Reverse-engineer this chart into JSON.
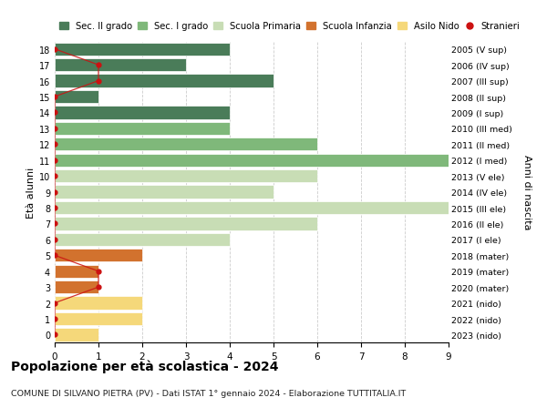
{
  "ages": [
    18,
    17,
    16,
    15,
    14,
    13,
    12,
    11,
    10,
    9,
    8,
    7,
    6,
    5,
    4,
    3,
    2,
    1,
    0
  ],
  "years": [
    "2005 (V sup)",
    "2006 (IV sup)",
    "2007 (III sup)",
    "2008 (II sup)",
    "2009 (I sup)",
    "2010 (III med)",
    "2011 (II med)",
    "2012 (I med)",
    "2013 (V ele)",
    "2014 (IV ele)",
    "2015 (III ele)",
    "2016 (II ele)",
    "2017 (I ele)",
    "2018 (mater)",
    "2019 (mater)",
    "2020 (mater)",
    "2021 (nido)",
    "2022 (nido)",
    "2023 (nido)"
  ],
  "bar_values": [
    4,
    3,
    5,
    1,
    4,
    4,
    6,
    9,
    6,
    5,
    9,
    6,
    4,
    2,
    1,
    1,
    2,
    2,
    1
  ],
  "bar_colors": [
    "#4a7c59",
    "#4a7c59",
    "#4a7c59",
    "#4a7c59",
    "#4a7c59",
    "#7fb87a",
    "#7fb87a",
    "#7fb87a",
    "#c8ddb5",
    "#c8ddb5",
    "#c8ddb5",
    "#c8ddb5",
    "#c8ddb5",
    "#d2722e",
    "#d2722e",
    "#d2722e",
    "#f5d87a",
    "#f5d87a",
    "#f5d87a"
  ],
  "stranieri_data": {
    "18": 0,
    "17": 1,
    "16": 1,
    "15": 0,
    "14": 0,
    "13": 0,
    "12": 0,
    "11": 0,
    "10": 0,
    "9": 0,
    "8": 0,
    "7": 0,
    "6": 0,
    "5": 0,
    "4": 1,
    "3": 1,
    "2": 0,
    "1": 0,
    "0": 0
  },
  "color_sec2": "#4a7c59",
  "color_sec1": "#7fb87a",
  "color_primaria": "#c8ddb5",
  "color_infanzia": "#d2722e",
  "color_nido": "#f5d87a",
  "color_stranieri": "#cc1111",
  "title": "Popolazione per età scolastica - 2024",
  "subtitle": "COMUNE DI SILVANO PIETRA (PV) - Dati ISTAT 1° gennaio 2024 - Elaborazione TUTTITALIA.IT",
  "ylabel_left": "Età alunni",
  "ylabel_right": "Anni di nascita",
  "xlim": [
    0,
    9
  ],
  "legend_labels": [
    "Sec. II grado",
    "Sec. I grado",
    "Scuola Primaria",
    "Scuola Infanzia",
    "Asilo Nido",
    "Stranieri"
  ],
  "grid_color": "#cccccc",
  "bg_color": "#ffffff"
}
